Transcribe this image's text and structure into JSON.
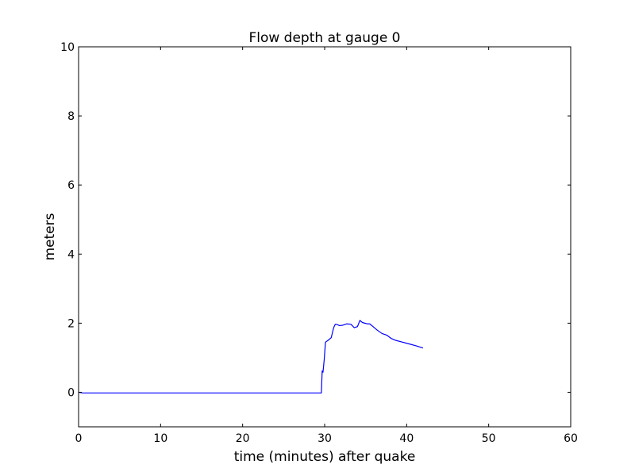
{
  "chart_data": {
    "type": "line",
    "title": "Flow depth at gauge 0",
    "xlabel": "time (minutes) after quake",
    "ylabel": "meters",
    "xlim": [
      0,
      60
    ],
    "ylim": [
      -1,
      10
    ],
    "xticks": [
      0,
      10,
      20,
      30,
      40,
      50,
      60
    ],
    "yticks": [
      0,
      2,
      4,
      6,
      8,
      10
    ],
    "xtick_labels": [
      "0",
      "10",
      "20",
      "30",
      "40",
      "50",
      "60"
    ],
    "ytick_labels": [
      "0",
      "2",
      "4",
      "6",
      "8",
      "10"
    ],
    "grid": false,
    "line_color": "#0000ff",
    "series": [
      {
        "x": [
          0,
          0.5,
          5,
          10,
          15,
          20,
          25,
          29.5,
          29.6,
          29.7,
          29.8,
          29.95,
          30.1,
          30.4,
          30.8,
          31.1,
          31.3,
          31.55,
          31.8,
          32.2,
          32.7,
          33.2,
          33.6,
          34.0,
          34.3,
          34.6,
          34.9,
          35.2,
          35.5,
          35.9,
          36.4,
          37.0,
          37.6,
          38.1,
          38.7,
          39.5,
          40.3,
          41.2,
          42.0
        ],
        "y": [
          0.0,
          -0.02,
          -0.02,
          -0.02,
          -0.02,
          -0.02,
          -0.02,
          -0.02,
          -0.02,
          0.62,
          0.58,
          0.95,
          1.45,
          1.5,
          1.58,
          1.87,
          1.97,
          1.96,
          1.93,
          1.94,
          1.98,
          1.97,
          1.87,
          1.9,
          2.08,
          2.02,
          2.0,
          1.98,
          1.98,
          1.9,
          1.8,
          1.7,
          1.65,
          1.56,
          1.5,
          1.45,
          1.4,
          1.34,
          1.28
        ]
      }
    ]
  }
}
